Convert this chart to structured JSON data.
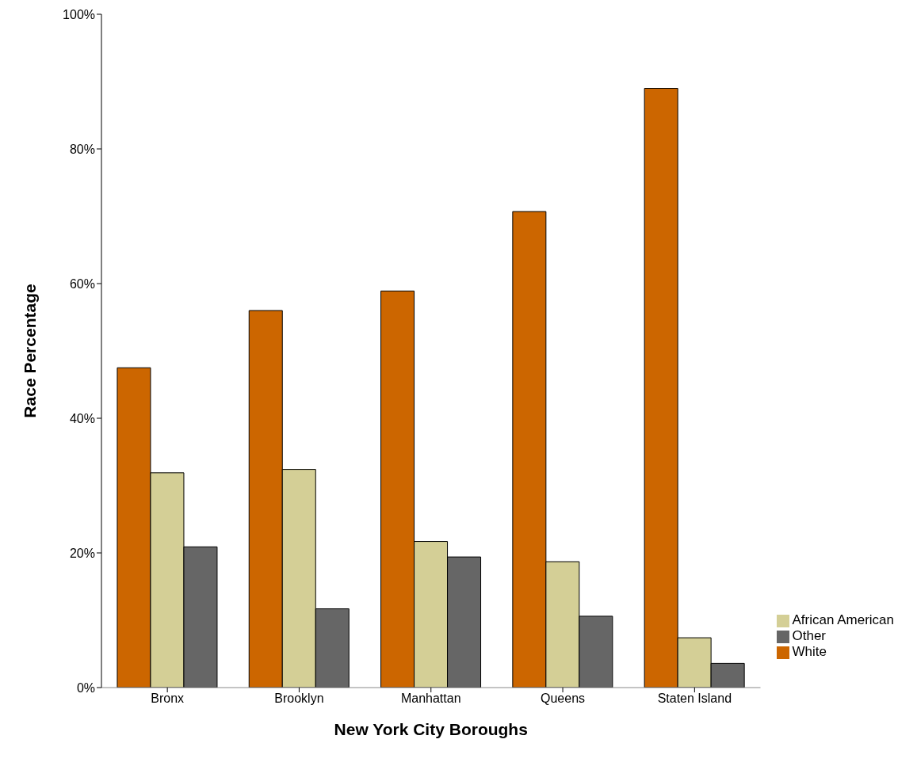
{
  "chart_data": {
    "type": "bar",
    "xlabel": "New York City Boroughs",
    "ylabel": "Race Percentage",
    "categories": [
      "Bronx",
      "Brooklyn",
      "Manhattan",
      "Queens",
      "Staten Island"
    ],
    "series": [
      {
        "name": "White",
        "color": "#cc6600",
        "values": [
          47.5,
          56.0,
          58.9,
          70.7,
          89.0
        ]
      },
      {
        "name": "African American",
        "color": "#d4cf96",
        "values": [
          31.9,
          32.4,
          21.7,
          18.7,
          7.4
        ]
      },
      {
        "name": "Other",
        "color": "#666666",
        "values": [
          20.9,
          11.7,
          19.4,
          10.6,
          3.6
        ]
      }
    ],
    "ylim": [
      0,
      100
    ],
    "yticks": [
      {
        "value": 0,
        "label": "0%"
      },
      {
        "value": 20,
        "label": "20%"
      },
      {
        "value": 40,
        "label": "40%"
      },
      {
        "value": 60,
        "label": "60%"
      },
      {
        "value": 80,
        "label": "80%"
      },
      {
        "value": 100,
        "label": "100%"
      }
    ],
    "grid": false,
    "legend": "bottom right"
  }
}
